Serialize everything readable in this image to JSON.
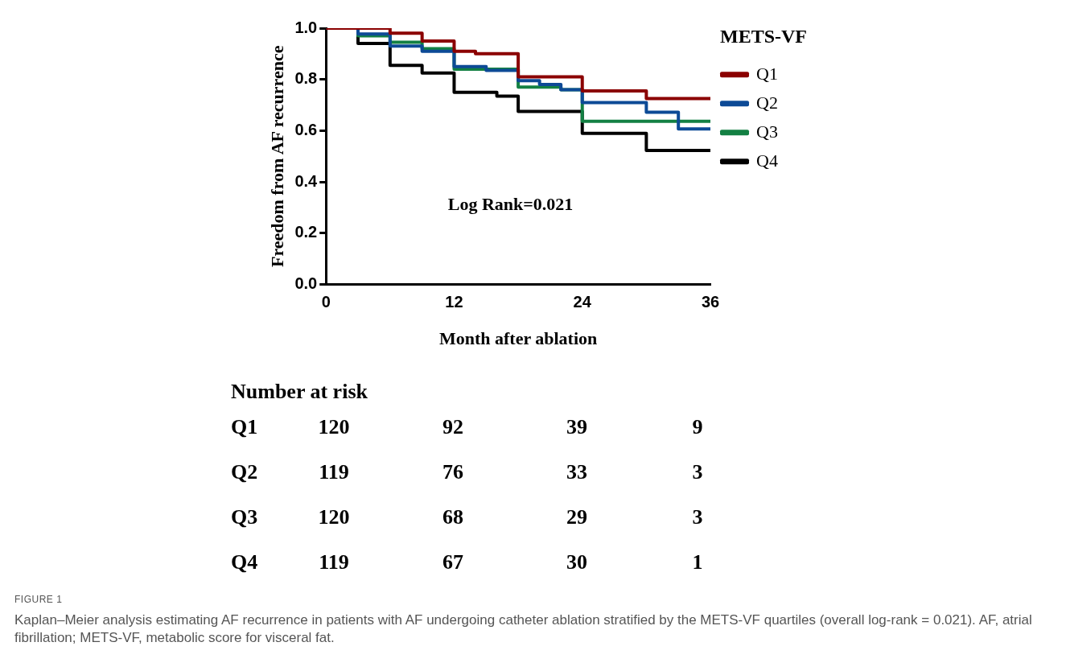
{
  "chart_data": {
    "type": "step",
    "xlabel": "Month after ablation",
    "ylabel": "Freedom from AF recurrence",
    "legend_title": "METS-VF",
    "legend": "top right",
    "grid": false,
    "marker": "none",
    "line_style": "solid",
    "xlim": [
      0,
      36
    ],
    "ylim": [
      0,
      1
    ],
    "xticks": [
      0,
      12,
      24,
      36
    ],
    "yticks": [
      {
        "value": 0,
        "label": "0.0"
      },
      {
        "value": 0.2,
        "label": "0.2"
      },
      {
        "value": 0.4,
        "label": "0.4"
      },
      {
        "value": 0.6,
        "label": "0.6"
      },
      {
        "value": 0.8,
        "label": "0.8"
      },
      {
        "value": 1,
        "label": "1.0"
      }
    ],
    "series": [
      {
        "name": "Q1",
        "color": "#8b0000",
        "x": [
          0,
          6,
          9,
          12,
          14,
          18,
          24,
          30,
          36
        ],
        "values": [
          1,
          0.98,
          0.95,
          0.91,
          0.9,
          0.81,
          0.755,
          0.725,
          0.725
        ]
      },
      {
        "name": "Q2",
        "color": "#0d4a96",
        "x": [
          0,
          3,
          6,
          9,
          12,
          15,
          18,
          20,
          22,
          24,
          30,
          33,
          36
        ],
        "values": [
          1,
          0.977,
          0.93,
          0.91,
          0.85,
          0.835,
          0.795,
          0.78,
          0.76,
          0.71,
          0.672,
          0.607,
          0.607
        ]
      },
      {
        "name": "Q3",
        "color": "#138043",
        "x": [
          0,
          3,
          6,
          9,
          12,
          18,
          22,
          24,
          36
        ],
        "values": [
          1,
          0.97,
          0.945,
          0.92,
          0.84,
          0.77,
          0.76,
          0.637,
          0.637
        ]
      },
      {
        "name": "Q4",
        "color": "#000000",
        "x": [
          0,
          3,
          6,
          9,
          12,
          16,
          18,
          24,
          30,
          36
        ],
        "values": [
          1,
          0.94,
          0.855,
          0.825,
          0.75,
          0.735,
          0.675,
          0.59,
          0.523,
          0.523
        ]
      }
    ],
    "annotations": [
      "Log Rank=0.021",
      "Number at risk",
      "Q1",
      "120",
      "92",
      "39",
      "9",
      "Q2",
      "119",
      "76",
      "33",
      "3",
      "Q3",
      "120",
      "68",
      "29",
      "3",
      "Q4",
      "119",
      "67",
      "30",
      "1",
      "FIGURE 1",
      "Kaplan–Meier analysis estimating AF recurrence in patients with AF undergoing catheter ablation stratified by the METS-VF quartiles (overall log-rank = 0.021). AF, atrial fibrillation; METS-VF, metabolic score for visceral fat."
    ]
  }
}
